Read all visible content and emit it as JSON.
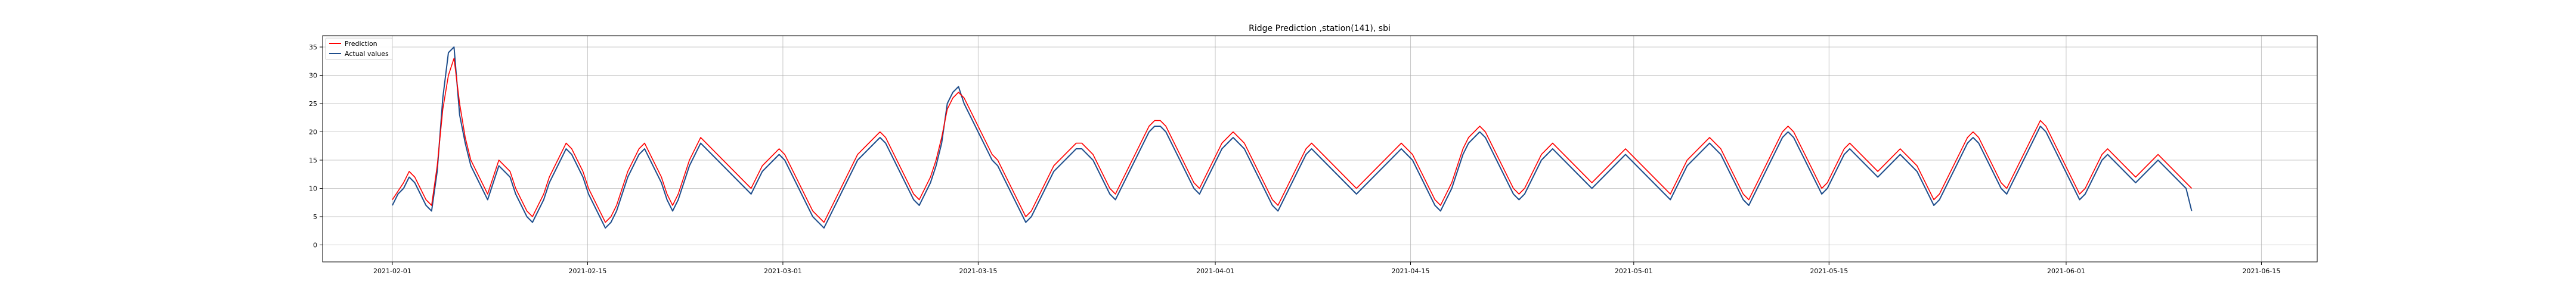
{
  "chart_data": {
    "type": "line",
    "title": "Ridge Prediction ,station(141), sbi",
    "xlabel": "",
    "ylabel": "",
    "x_start": "2021-02-01",
    "x_end": "2021-06-10",
    "xlim": [
      "2021-01-27",
      "2021-06-19"
    ],
    "ylim": [
      -3,
      37
    ],
    "grid": true,
    "legend_position": "top-left",
    "x_ticks": [
      "2021-02-01",
      "2021-02-15",
      "2021-03-01",
      "2021-03-15",
      "2021-04-01",
      "2021-04-15",
      "2021-05-01",
      "2021-05-15",
      "2021-06-01",
      "2021-06-15"
    ],
    "y_ticks": [
      "0",
      "5",
      "10",
      "15",
      "20",
      "25",
      "30",
      "35"
    ],
    "series": [
      {
        "name": "Prediction",
        "color": "#ff0000",
        "values": [
          8,
          9.5,
          11,
          13,
          12,
          10,
          8,
          7,
          14,
          24,
          30,
          33,
          25,
          19,
          15,
          13,
          11,
          9,
          12,
          15,
          14,
          13,
          10,
          8,
          6,
          5,
          7,
          9,
          12,
          14,
          16,
          18,
          17,
          15,
          13,
          10,
          8,
          6,
          4,
          5,
          7,
          10,
          13,
          15,
          17,
          18,
          16,
          14,
          12,
          9,
          7,
          9,
          12,
          15,
          17,
          19,
          18,
          17,
          16,
          15,
          14,
          13,
          12,
          11,
          10,
          12,
          14,
          15,
          16,
          17,
          16,
          14,
          12,
          10,
          8,
          6,
          5,
          4,
          6,
          8,
          10,
          12,
          14,
          16,
          17,
          18,
          19,
          20,
          19,
          17,
          15,
          13,
          11,
          9,
          8,
          10,
          12,
          15,
          19,
          24,
          26,
          27,
          26,
          24,
          22,
          20,
          18,
          16,
          15,
          13,
          11,
          9,
          7,
          5,
          6,
          8,
          10,
          12,
          14,
          15,
          16,
          17,
          18,
          18,
          17,
          16,
          14,
          12,
          10,
          9,
          11,
          13,
          15,
          17,
          19,
          21,
          22,
          22,
          21,
          19,
          17,
          15,
          13,
          11,
          10,
          12,
          14,
          16,
          18,
          19,
          20,
          19,
          18,
          16,
          14,
          12,
          10,
          8,
          7,
          9,
          11,
          13,
          15,
          17,
          18,
          17,
          16,
          15,
          14,
          13,
          12,
          11,
          10,
          11,
          12,
          13,
          14,
          15,
          16,
          17,
          18,
          17,
          16,
          14,
          12,
          10,
          8,
          7,
          9,
          11,
          14,
          17,
          19,
          20,
          21,
          20,
          18,
          16,
          14,
          12,
          10,
          9,
          10,
          12,
          14,
          16,
          17,
          18,
          17,
          16,
          15,
          14,
          13,
          12,
          11,
          12,
          13,
          14,
          15,
          16,
          17,
          16,
          15,
          14,
          13,
          12,
          11,
          10,
          9,
          11,
          13,
          15,
          16,
          17,
          18,
          19,
          18,
          17,
          15,
          13,
          11,
          9,
          8,
          10,
          12,
          14,
          16,
          18,
          20,
          21,
          20,
          18,
          16,
          14,
          12,
          10,
          11,
          13,
          15,
          17,
          18,
          17,
          16,
          15,
          14,
          13,
          14,
          15,
          16,
          17,
          16,
          15,
          14,
          12,
          10,
          8,
          9,
          11,
          13,
          15,
          17,
          19,
          20,
          19,
          17,
          15,
          13,
          11,
          10,
          12,
          14,
          16,
          18,
          20,
          22,
          21,
          19,
          17,
          15,
          13,
          11,
          9,
          10,
          12,
          14,
          16,
          17,
          16,
          15,
          14,
          13,
          12,
          13,
          14,
          15,
          16,
          15,
          14,
          13,
          12,
          11,
          10
        ]
      },
      {
        "name": "Actual values",
        "color": "#1f4e8c",
        "values": [
          7,
          9,
          10,
          12,
          11,
          9,
          7,
          6,
          13,
          26,
          34,
          35,
          23,
          18,
          14,
          12,
          10,
          8,
          11,
          14,
          13,
          12,
          9,
          7,
          5,
          4,
          6,
          8,
          11,
          13,
          15,
          17,
          16,
          14,
          12,
          9,
          7,
          5,
          3,
          4,
          6,
          9,
          12,
          14,
          16,
          17,
          15,
          13,
          11,
          8,
          6,
          8,
          11,
          14,
          16,
          18,
          17,
          16,
          15,
          14,
          13,
          12,
          11,
          10,
          9,
          11,
          13,
          14,
          15,
          16,
          15,
          13,
          11,
          9,
          7,
          5,
          4,
          3,
          5,
          7,
          9,
          11,
          13,
          15,
          16,
          17,
          18,
          19,
          18,
          16,
          14,
          12,
          10,
          8,
          7,
          9,
          11,
          14,
          18,
          25,
          27,
          28,
          25,
          23,
          21,
          19,
          17,
          15,
          14,
          12,
          10,
          8,
          6,
          4,
          5,
          7,
          9,
          11,
          13,
          14,
          15,
          16,
          17,
          17,
          16,
          15,
          13,
          11,
          9,
          8,
          10,
          12,
          14,
          16,
          18,
          20,
          21,
          21,
          20,
          18,
          16,
          14,
          12,
          10,
          9,
          11,
          13,
          15,
          17,
          18,
          19,
          18,
          17,
          15,
          13,
          11,
          9,
          7,
          6,
          8,
          10,
          12,
          14,
          16,
          17,
          16,
          15,
          14,
          13,
          12,
          11,
          10,
          9,
          10,
          11,
          12,
          13,
          14,
          15,
          16,
          17,
          16,
          15,
          13,
          11,
          9,
          7,
          6,
          8,
          10,
          13,
          16,
          18,
          19,
          20,
          19,
          17,
          15,
          13,
          11,
          9,
          8,
          9,
          11,
          13,
          15,
          16,
          17,
          16,
          15,
          14,
          13,
          12,
          11,
          10,
          11,
          12,
          13,
          14,
          15,
          16,
          15,
          14,
          13,
          12,
          11,
          10,
          9,
          8,
          10,
          12,
          14,
          15,
          16,
          17,
          18,
          17,
          16,
          14,
          12,
          10,
          8,
          7,
          9,
          11,
          13,
          15,
          17,
          19,
          20,
          19,
          17,
          15,
          13,
          11,
          9,
          10,
          12,
          14,
          16,
          17,
          16,
          15,
          14,
          13,
          12,
          13,
          14,
          15,
          16,
          15,
          14,
          13,
          11,
          9,
          7,
          8,
          10,
          12,
          14,
          16,
          18,
          19,
          18,
          16,
          14,
          12,
          10,
          9,
          11,
          13,
          15,
          17,
          19,
          21,
          20,
          18,
          16,
          14,
          12,
          10,
          8,
          9,
          11,
          13,
          15,
          16,
          15,
          14,
          13,
          12,
          11,
          12,
          13,
          14,
          15,
          14,
          13,
          12,
          11,
          10,
          6
        ]
      }
    ]
  }
}
